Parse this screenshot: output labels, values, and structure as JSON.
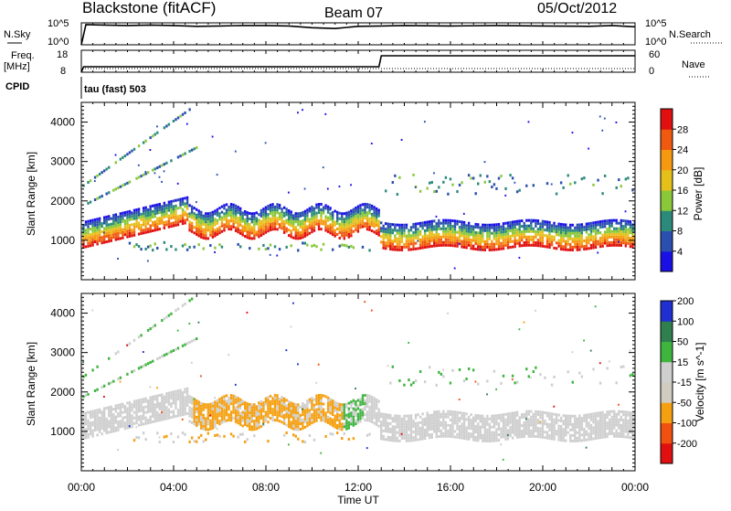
{
  "header": {
    "station": "Blackstone (fitACF)",
    "beam": "Beam 07",
    "date": "05/Oct/2012"
  },
  "aux_panels": {
    "nsky_label": "N.Sky",
    "nsky_ticks": [
      "10^5",
      "10^0"
    ],
    "nsearch_label": "N.Search",
    "freq_label": "Freq.",
    "freq_unit": "[MHz]",
    "freq_ticks": [
      "18",
      "8"
    ],
    "nave_label": "Nave",
    "nave_ticks": [
      "60",
      "0"
    ],
    "cpid_label": "CPID",
    "cpid_value": "tau (fast) 503"
  },
  "x_axis": {
    "label": "Time UT",
    "ticks": [
      "00:00",
      "04:00",
      "08:00",
      "12:00",
      "16:00",
      "20:00",
      "00:00"
    ]
  },
  "colors": {
    "power_scale": [
      "#1a10e6",
      "#2a4fae",
      "#2b8a7a",
      "#8ac83a",
      "#e6c01a",
      "#f59a10",
      "#f05a10",
      "#e01010"
    ],
    "velocity_scale": [
      "#e01010",
      "#f05010",
      "#f5a010",
      "#d0ccc0",
      "#cfcfcf",
      "#3fb53f",
      "#2f7f4f",
      "#1f2fd0"
    ]
  },
  "chart_data": [
    {
      "type": "line",
      "panel": "N.Sky",
      "x_unit": "hours UT",
      "xlim": [
        0,
        24
      ],
      "x": [
        0,
        0.2,
        1,
        2,
        3,
        4,
        5,
        6,
        7,
        8,
        9,
        10,
        11,
        12,
        13,
        14,
        16,
        18,
        20,
        22,
        23,
        24
      ],
      "values": [
        0,
        4.6,
        4.5,
        4.4,
        4.5,
        4.4,
        4.2,
        4.3,
        4.4,
        4.4,
        4.3,
        3.9,
        3.7,
        4.2,
        4.3,
        4.4,
        4.3,
        4.4,
        4.3,
        4.2,
        4.4,
        4.1
      ],
      "ylim": [
        0,
        5
      ]
    },
    {
      "type": "line",
      "panel": "Frequency",
      "x_unit": "hours UT",
      "xlim": [
        0,
        24
      ],
      "x": [
        0,
        0.1,
        12.9,
        13,
        24
      ],
      "values": [
        8,
        10.5,
        10.5,
        15.5,
        15.5
      ],
      "ylim": [
        8,
        18
      ]
    },
    {
      "type": "heatmap",
      "panel": "Power",
      "colorbar_label": "Power [dB]",
      "colorbar_ticks": [
        4,
        8,
        12,
        16,
        20,
        24,
        28
      ],
      "ylabel": "Slant Range [km]",
      "yticks": [
        1000,
        2000,
        3000,
        4000
      ],
      "ylim": [
        0,
        4500
      ],
      "xlim": [
        0,
        24
      ],
      "x_unit": "hours UT"
    },
    {
      "type": "heatmap",
      "panel": "Velocity",
      "colorbar_label": "Velocity [m s^-1]",
      "colorbar_ticks": [
        -200,
        -100,
        -50,
        -15,
        15,
        50,
        100,
        200
      ],
      "ylabel": "Slant Range [km]",
      "yticks": [
        1000,
        2000,
        3000,
        4000
      ],
      "ylim": [
        0,
        4500
      ],
      "xlim": [
        0,
        24
      ],
      "x_unit": "hours UT"
    }
  ]
}
